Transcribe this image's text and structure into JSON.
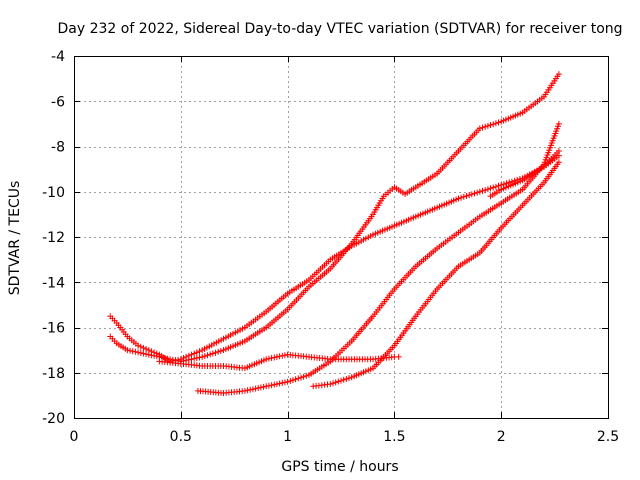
{
  "chart_data": {
    "type": "scatter",
    "title": "Day 232 of 2022, Sidereal Day-to-day VTEC variation (SDTVAR) for receiver tong",
    "xlabel": "GPS time / hours",
    "ylabel": "SDTVAR / TECUs",
    "xlim": [
      0,
      2.5
    ],
    "ylim": [
      -20,
      -4
    ],
    "xticks": [
      0,
      0.5,
      1,
      1.5,
      2,
      2.5
    ],
    "xtick_labels": [
      "0",
      "0.5",
      "1",
      "1.5",
      "2",
      "2.5"
    ],
    "yticks": [
      -20,
      -18,
      -16,
      -14,
      -12,
      -10,
      -8,
      -6,
      -4
    ],
    "ytick_labels": [
      "-20",
      "-18",
      "-16",
      "-14",
      "-12",
      "-10",
      "-8",
      "-6",
      "-4"
    ],
    "grid": true,
    "marker": "+",
    "color": "#ff0000",
    "series": [
      {
        "x": [
          0.17,
          0.2,
          0.25,
          0.3,
          0.35,
          0.4,
          0.45,
          0.5,
          0.55,
          0.6,
          0.7,
          0.8,
          0.9,
          1.0,
          1.1,
          1.2,
          1.3,
          1.4,
          1.5,
          1.6,
          1.7,
          1.8,
          1.9,
          2.0,
          2.1,
          2.2,
          2.27
        ],
        "y": [
          -15.5,
          -15.8,
          -16.4,
          -16.8,
          -17.0,
          -17.2,
          -17.5,
          -17.4,
          -17.2,
          -17.0,
          -16.5,
          -16.0,
          -15.3,
          -14.5,
          -13.9,
          -13.0,
          -12.4,
          -11.9,
          -11.5,
          -11.1,
          -10.7,
          -10.3,
          -10.0,
          -9.7,
          -9.4,
          -8.9,
          -8.4
        ]
      },
      {
        "x": [
          0.17,
          0.2,
          0.25,
          0.3,
          0.35,
          0.4,
          0.45,
          0.5,
          0.6,
          0.7,
          0.8,
          0.9,
          1.0,
          1.1,
          1.2,
          1.3,
          1.4,
          1.45,
          1.5,
          1.55,
          1.6,
          1.7,
          1.8,
          1.9,
          2.0,
          2.1,
          2.2,
          2.27
        ],
        "y": [
          -16.4,
          -16.7,
          -17.0,
          -17.1,
          -17.2,
          -17.3,
          -17.4,
          -17.5,
          -17.3,
          -17.0,
          -16.6,
          -16.0,
          -15.2,
          -14.2,
          -13.4,
          -12.3,
          -11.0,
          -10.2,
          -9.8,
          -10.1,
          -9.8,
          -9.2,
          -8.2,
          -7.2,
          -6.9,
          -6.5,
          -5.8,
          -4.8
        ]
      },
      {
        "x": [
          0.4,
          0.5,
          0.6,
          0.7,
          0.8,
          0.9,
          1.0,
          1.1,
          1.2,
          1.3,
          1.4,
          1.5,
          1.52
        ],
        "y": [
          -17.5,
          -17.6,
          -17.7,
          -17.7,
          -17.8,
          -17.4,
          -17.2,
          -17.3,
          -17.4,
          -17.4,
          -17.4,
          -17.3,
          -17.3
        ]
      },
      {
        "x": [
          0.58,
          0.7,
          0.8,
          0.9,
          1.0,
          1.1,
          1.2,
          1.3,
          1.4,
          1.5,
          1.6,
          1.7,
          1.8,
          1.9,
          2.0,
          2.1,
          2.2,
          2.27
        ],
        "y": [
          -18.8,
          -18.9,
          -18.8,
          -18.6,
          -18.4,
          -18.1,
          -17.5,
          -16.6,
          -15.5,
          -14.3,
          -13.3,
          -12.5,
          -11.8,
          -11.1,
          -10.5,
          -9.9,
          -8.8,
          -7.0
        ]
      },
      {
        "x": [
          1.12,
          1.2,
          1.3,
          1.4,
          1.5,
          1.6,
          1.7,
          1.8,
          1.9,
          2.0,
          2.1,
          2.2,
          2.27
        ],
        "y": [
          -18.6,
          -18.5,
          -18.2,
          -17.8,
          -16.8,
          -15.5,
          -14.3,
          -13.3,
          -12.7,
          -11.6,
          -10.6,
          -9.6,
          -8.7
        ]
      },
      {
        "x": [
          1.95,
          2.0,
          2.1,
          2.2,
          2.27
        ],
        "y": [
          -10.2,
          -9.9,
          -9.5,
          -8.9,
          -8.2
        ]
      }
    ]
  }
}
